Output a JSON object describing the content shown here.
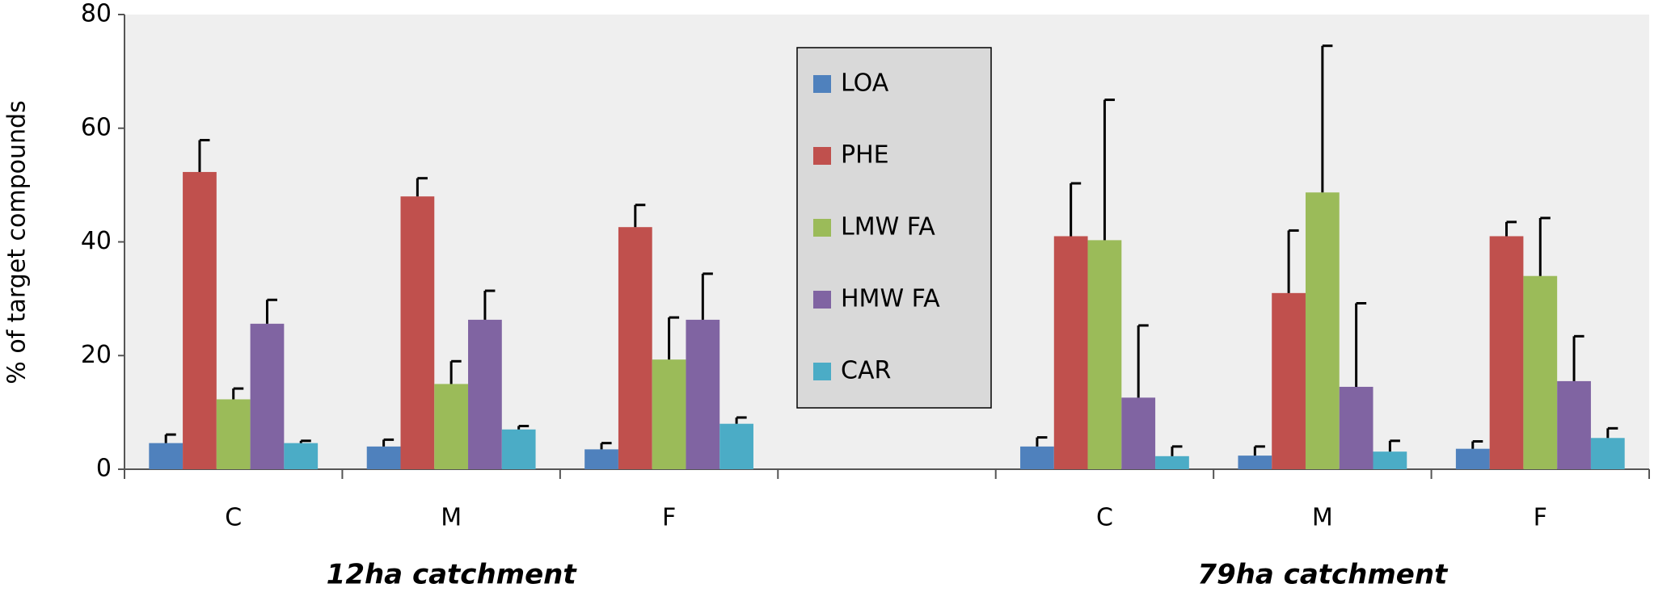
{
  "chart_data": {
    "type": "bar",
    "y_label": "% of target compounds",
    "categories": [
      "C",
      "M",
      "F",
      null,
      "C",
      "M",
      "F"
    ],
    "group_labels": [
      "12ha catchment",
      "79ha catchment"
    ],
    "ylim": [
      0,
      80
    ],
    "yticks": [
      0,
      20,
      40,
      60,
      80
    ],
    "series": [
      {
        "name": "LOA",
        "color": "#4f81bd",
        "values": [
          4.6,
          4,
          3.5,
          null,
          4,
          2.4,
          3.6
        ],
        "errors": [
          1.5,
          1.2,
          1.1,
          null,
          1.6,
          1.6,
          1.3
        ]
      },
      {
        "name": "PHE",
        "color": "#c0504d",
        "values": [
          52.3,
          48,
          42.6,
          null,
          41,
          31,
          41
        ],
        "errors": [
          5.6,
          3.2,
          3.9,
          null,
          9.3,
          11,
          2.5
        ]
      },
      {
        "name": "LMW FA",
        "color": "#9bbb59",
        "values": [
          12.3,
          15,
          19.3,
          null,
          40.3,
          48.7,
          34
        ],
        "errors": [
          1.9,
          4,
          7.4,
          null,
          24.7,
          25.8,
          10.2
        ]
      },
      {
        "name": "HMW FA",
        "color": "#8064a2",
        "values": [
          25.6,
          26.3,
          26.3,
          null,
          12.6,
          14.5,
          15.5
        ],
        "errors": [
          4.2,
          5.1,
          8.1,
          null,
          12.7,
          14.7,
          7.9
        ]
      },
      {
        "name": "CAR",
        "color": "#4bacc6",
        "values": [
          4.6,
          7,
          8,
          null,
          2.3,
          3.1,
          5.5
        ],
        "errors": [
          0.4,
          0.6,
          1.1,
          null,
          1.7,
          1.9,
          1.7
        ]
      }
    ]
  }
}
